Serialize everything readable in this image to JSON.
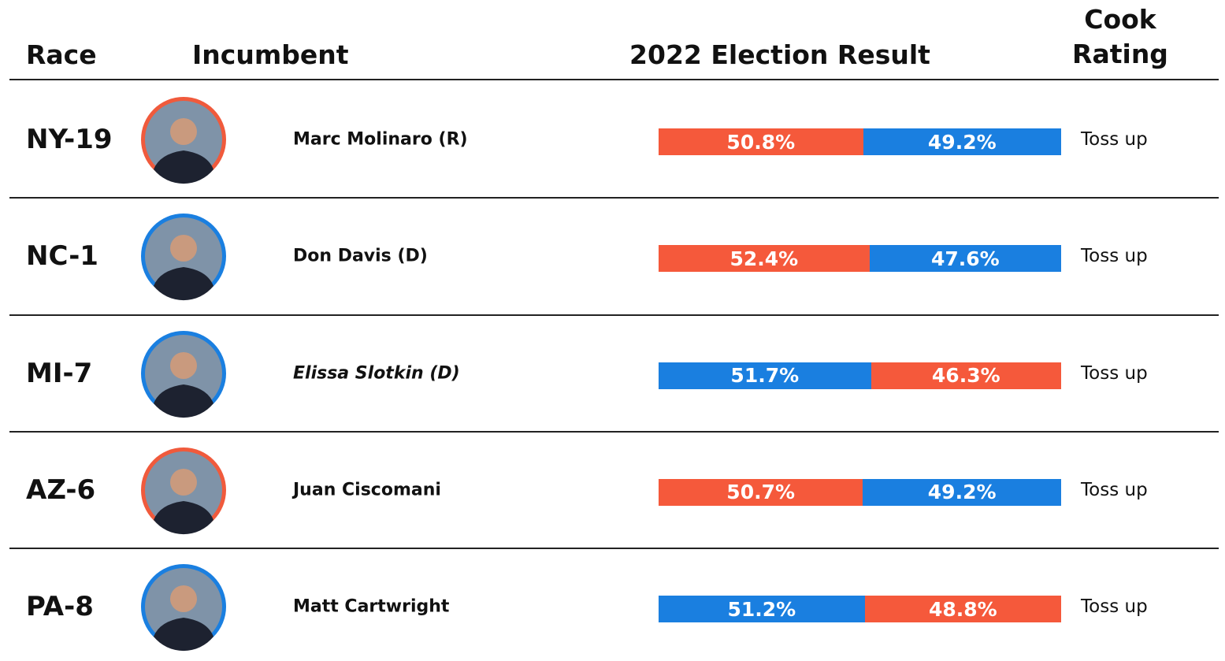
{
  "header": {
    "race": "Race",
    "incumbent": "Incumbent",
    "result": "2022 Election Result",
    "rating": "Cook Rating"
  },
  "rows": [
    {
      "race": "NY-19",
      "incumbent": "Marc Molinaro (R)",
      "italic": false,
      "ring_color": "#f05a3c",
      "result": {
        "values": [
          50.8,
          49.2
        ],
        "value_labels": [
          "50.8%",
          "49.2%"
        ],
        "colors": [
          "#f5593b",
          "#1a7fe0"
        ]
      },
      "rating": "Toss up"
    },
    {
      "race": "NC-1",
      "incumbent": "Don Davis (D)",
      "italic": false,
      "ring_color": "#1a7fe0",
      "result": {
        "values": [
          52.4,
          47.6
        ],
        "value_labels": [
          "52.4%",
          "47.6%"
        ],
        "colors": [
          "#f5593b",
          "#1a7fe0"
        ]
      },
      "rating": "Toss up"
    },
    {
      "race": "MI-7",
      "incumbent": "Elissa Slotkin (D)",
      "italic": true,
      "ring_color": "#1a7fe0",
      "result": {
        "values": [
          51.7,
          46.3
        ],
        "value_labels": [
          "51.7%",
          "46.3%"
        ],
        "colors": [
          "#1a7fe0",
          "#f5593b"
        ]
      },
      "rating": "Toss up"
    },
    {
      "race": "AZ-6",
      "incumbent": "Juan Ciscomani",
      "italic": false,
      "ring_color": "#f05a3c",
      "result": {
        "values": [
          50.7,
          49.2
        ],
        "value_labels": [
          "50.7%",
          "49.2%"
        ],
        "colors": [
          "#f5593b",
          "#1a7fe0"
        ]
      },
      "rating": "Toss up"
    },
    {
      "race": "PA-8",
      "incumbent": "Matt Cartwright",
      "italic": false,
      "ring_color": "#1a7fe0",
      "result": {
        "values": [
          51.2,
          48.8
        ],
        "value_labels": [
          "51.2%",
          "48.8%"
        ],
        "colors": [
          "#1a7fe0",
          "#f5593b"
        ]
      },
      "rating": "Toss up"
    }
  ]
}
